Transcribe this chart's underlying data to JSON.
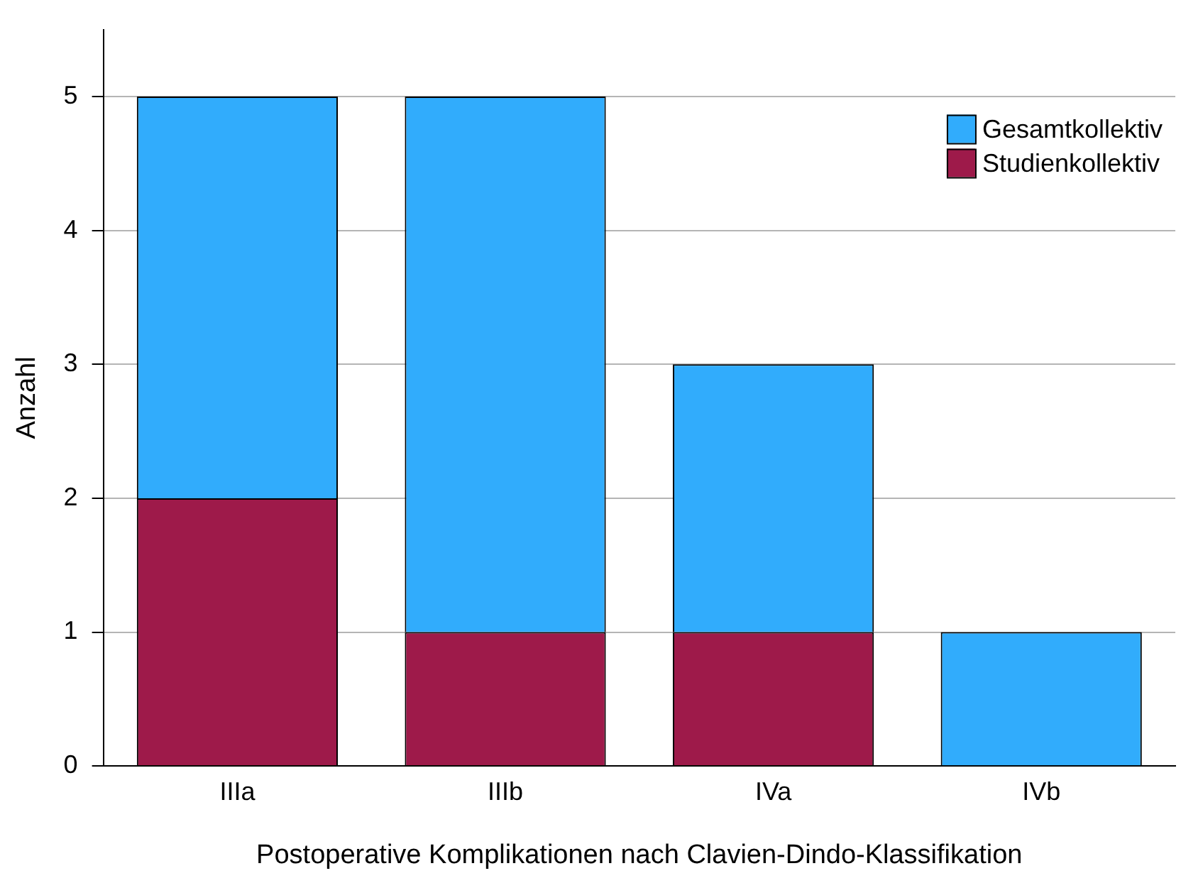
{
  "chart_data": {
    "type": "bar",
    "stacked": true,
    "xlabel": "Postoperative Komplikationen nach Clavien-Dindo-Klassifikation",
    "ylabel": "Anzahl",
    "categories": [
      "IIIa",
      "IIIb",
      "IVa",
      "IVb"
    ],
    "series": [
      {
        "name": "Studienkollektiv",
        "color": "#9e1a4a",
        "values": [
          2,
          1,
          1,
          0
        ]
      },
      {
        "name": "Gesamtkollektiv",
        "color": "#31acfc",
        "values": [
          3,
          4,
          2,
          1
        ]
      }
    ],
    "ylim": [
      0,
      5.5
    ],
    "yticks": [
      0,
      1,
      2,
      3,
      4,
      5
    ],
    "grid": "y",
    "legend": "top right"
  }
}
